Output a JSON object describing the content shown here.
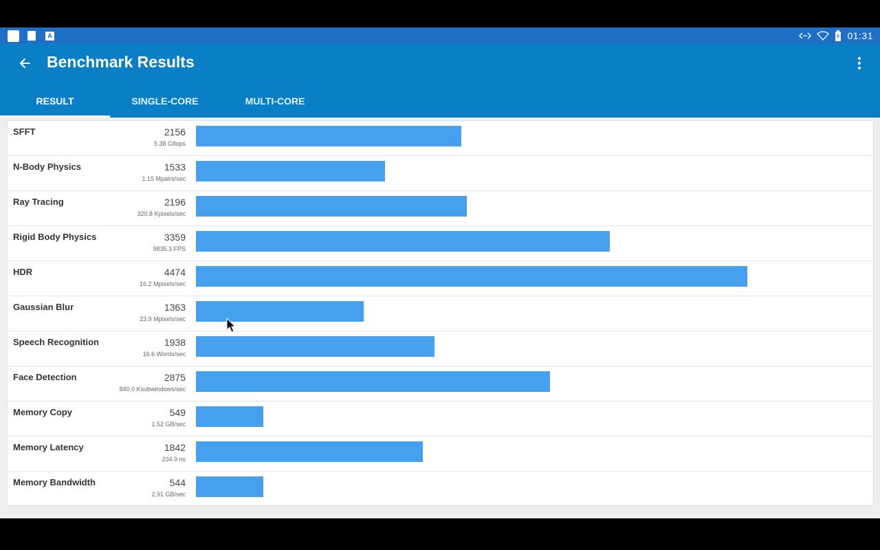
{
  "status_bar": {
    "time": "01:31",
    "icons": [
      "notification-icon",
      "sd-card-icon",
      "keyboard-icon",
      "code-icon",
      "wifi-icon",
      "battery-icon"
    ]
  },
  "app_bar": {
    "title": "Benchmark Results",
    "back_icon": "arrow-back-icon",
    "menu_icon": "more-vert-icon"
  },
  "tabs": [
    {
      "label": "RESULT",
      "selected": true
    },
    {
      "label": "SINGLE-CORE",
      "selected": false
    },
    {
      "label": "MULTI-CORE",
      "selected": false
    }
  ],
  "colors": {
    "status_bar": "#1f6fc5",
    "app_bar": "#0a7fc6",
    "bar": "#45a1ed"
  },
  "results": [
    {
      "name": "SFFT",
      "score": "2156",
      "detail": "5.38 Gflops",
      "value": 2156
    },
    {
      "name": "N-Body Physics",
      "score": "1533",
      "detail": "1.15 Mpairs/sec",
      "value": 1533
    },
    {
      "name": "Ray Tracing",
      "score": "2196",
      "detail": "320.8 Kpixels/sec",
      "value": 2196
    },
    {
      "name": "Rigid Body Physics",
      "score": "3359",
      "detail": "9835.3 FPS",
      "value": 3359
    },
    {
      "name": "HDR",
      "score": "4474",
      "detail": "16.2 Mpixels/sec",
      "value": 4474
    },
    {
      "name": "Gaussian Blur",
      "score": "1363",
      "detail": "23.9 Mpixels/sec",
      "value": 1363
    },
    {
      "name": "Speech Recognition",
      "score": "1938",
      "detail": "16.6 Words/sec",
      "value": 1938
    },
    {
      "name": "Face Detection",
      "score": "2875",
      "detail": "840.0 Ksubwindows/sec",
      "value": 2875
    },
    {
      "name": "Memory Copy",
      "score": "549",
      "detail": "1.52 GB/sec",
      "value": 549
    },
    {
      "name": "Memory Latency",
      "score": "1842",
      "detail": "234.9 ns",
      "value": 1842
    },
    {
      "name": "Memory Bandwidth",
      "score": "544",
      "detail": "2.91 GB/sec",
      "value": 544
    }
  ]
}
